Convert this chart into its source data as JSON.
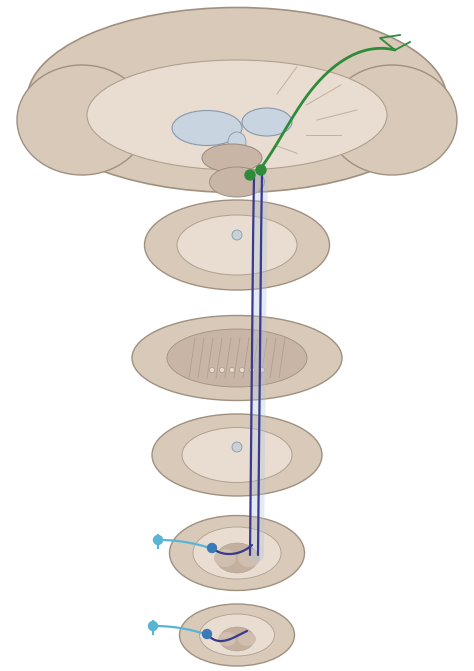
{
  "bg_color": "#ffffff",
  "brain_color": "#d9c9b8",
  "brain_inner_color": "#e8ddd0",
  "gray_matter_color": "#b8a89a",
  "ventricle_color": "#c8d4e0",
  "green_color": "#2e8b3a",
  "dark_blue_color": "#3a3a8c",
  "light_blue_color": "#5ab4d6",
  "dot_blue": "#3a7ab8",
  "fig_width": 4.74,
  "fig_height": 6.71,
  "dpi": 100
}
